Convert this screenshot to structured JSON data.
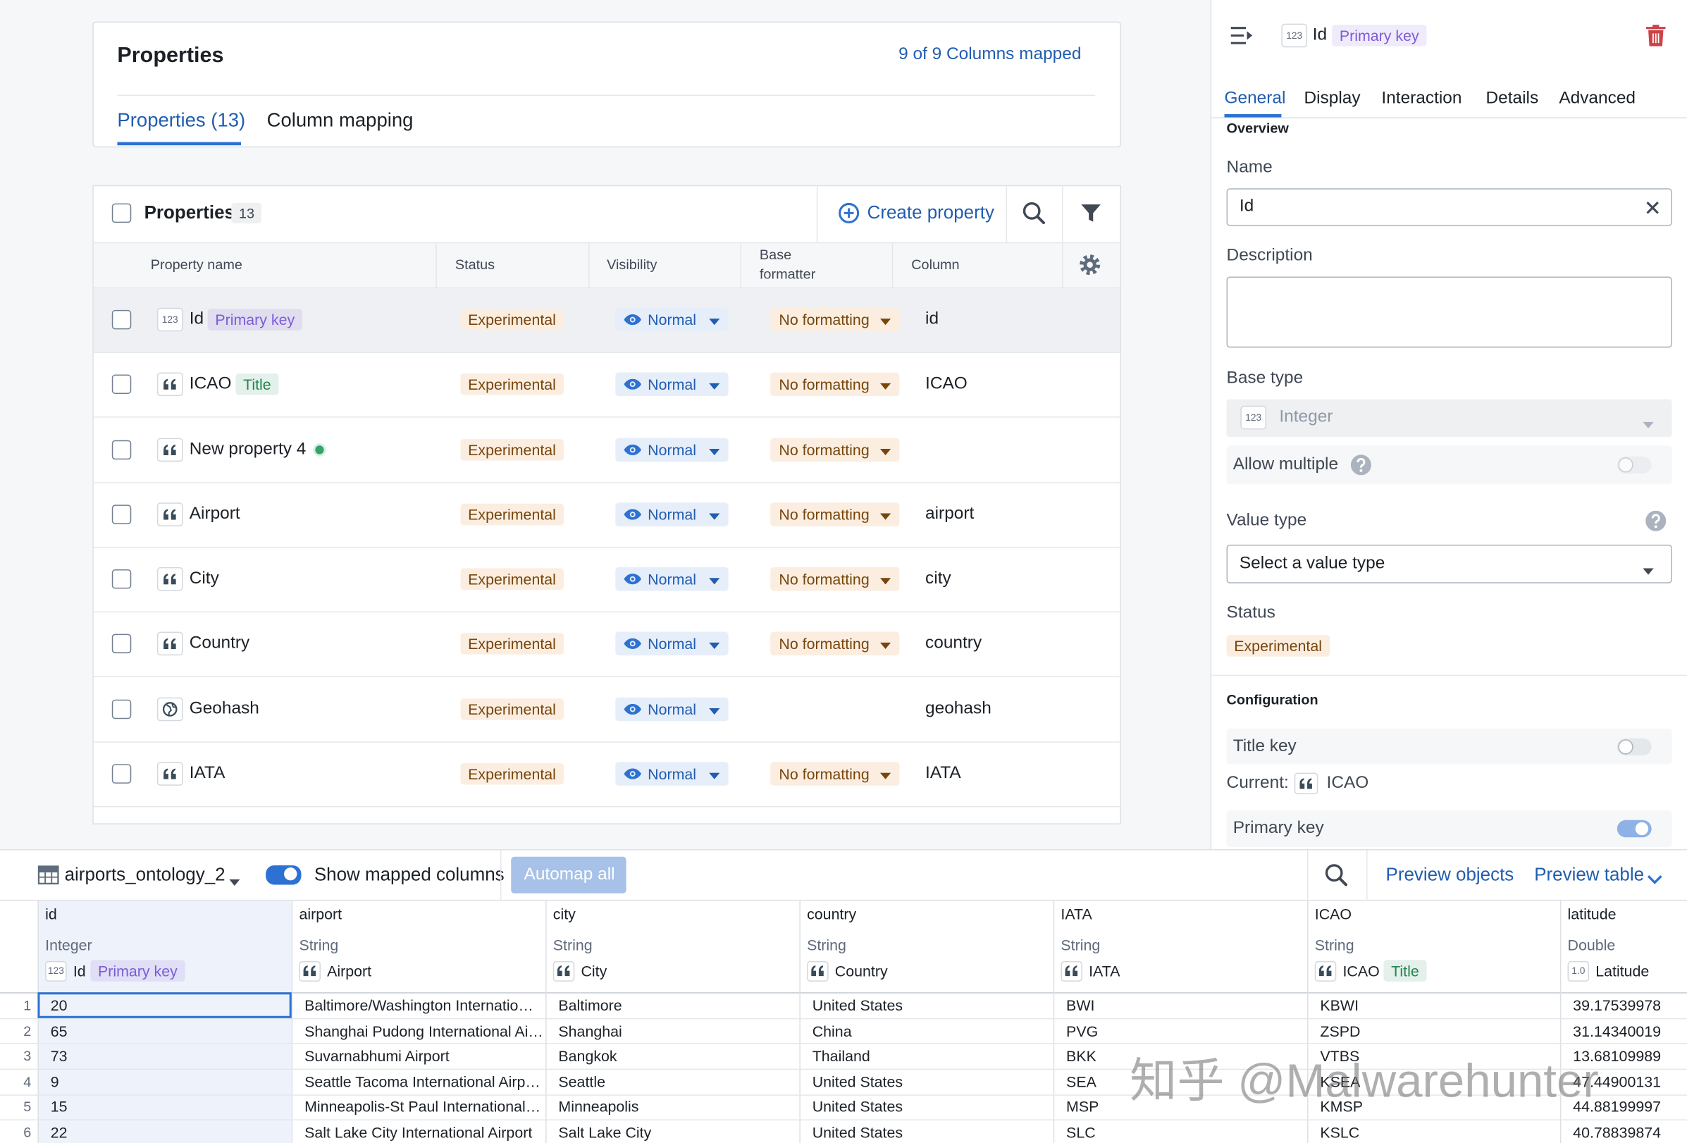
{
  "properties_panel": {
    "title": "Properties",
    "mapped": "9 of 9 Columns mapped",
    "tabs": [
      "Properties (13)",
      "Column mapping"
    ]
  },
  "table": {
    "title": "Properties",
    "count": "13",
    "create": "Create property",
    "headers": [
      "Property name",
      "Status",
      "Visibility",
      "Base formatter",
      "Column"
    ],
    "rows": [
      {
        "icon": "123",
        "name": "Id",
        "badge": "Primary key",
        "badge_color": "#7c5cd6",
        "status": "Experimental",
        "visibility": "Normal",
        "formatter": "No formatting",
        "column": "id"
      },
      {
        "icon": "quote",
        "name": "ICAO",
        "badge": "Title",
        "badge_color": "#238551",
        "status": "Experimental",
        "visibility": "Normal",
        "formatter": "No formatting",
        "column": "ICAO"
      },
      {
        "icon": "quote",
        "name": "New property 4",
        "dot_color": "#32a467",
        "status": "Experimental",
        "visibility": "Normal",
        "formatter": "No formatting",
        "column": null
      },
      {
        "icon": "quote",
        "name": "Airport",
        "status": "Experimental",
        "visibility": "Normal",
        "formatter": "No formatting",
        "column": "airport"
      },
      {
        "icon": "quote",
        "name": "City",
        "status": "Experimental",
        "visibility": "Normal",
        "formatter": "No formatting",
        "column": "city"
      },
      {
        "icon": "quote",
        "name": "Country",
        "status": "Experimental",
        "visibility": "Normal",
        "formatter": "No formatting",
        "column": "country"
      },
      {
        "icon": "globe",
        "name": "Geohash",
        "status": "Experimental",
        "visibility": "Normal",
        "formatter": null,
        "column": "geohash"
      },
      {
        "icon": "quote",
        "name": "IATA",
        "status": "Experimental",
        "visibility": "Normal",
        "formatter": "No formatting",
        "column": "IATA"
      }
    ]
  },
  "side": {
    "header_icon": "123",
    "header_name": "Id",
    "header_badge": "Primary key",
    "tabs": [
      "General",
      "Display",
      "Interaction",
      "Details",
      "Advanced"
    ],
    "overview": "Overview",
    "name_label": "Name",
    "name_value": "Id",
    "description_label": "Description",
    "base_type_label": "Base type",
    "base_type_icon": "123",
    "base_type": "Integer",
    "allow_multiple": "Allow multiple",
    "value_type_label": "Value type",
    "value_type_placeholder": "Select a value type",
    "status_label": "Status",
    "status": "Experimental",
    "configuration": "Configuration",
    "title_key": "Title key",
    "current_label": "Current:",
    "current_value": "ICAO",
    "primary_key": "Primary key"
  },
  "bottom": {
    "dataset": "airports_ontology_2",
    "show_mapped": "Show mapped columns",
    "automap": "Automap all",
    "preview_objects": "Preview objects",
    "preview_table": "Preview table",
    "columns": [
      {
        "name": "id",
        "type": "Integer",
        "icon": "123",
        "property": "Id",
        "badge": "Primary key",
        "badge_color": "#7c5cd6"
      },
      {
        "name": "airport",
        "type": "String",
        "icon": "quote",
        "property": "Airport"
      },
      {
        "name": "city",
        "type": "String",
        "icon": "quote",
        "property": "City"
      },
      {
        "name": "country",
        "type": "String",
        "icon": "quote",
        "property": "Country"
      },
      {
        "name": "IATA",
        "type": "String",
        "icon": "quote",
        "property": "IATA"
      },
      {
        "name": "ICAO",
        "type": "String",
        "icon": "quote",
        "property": "ICAO",
        "badge": "Title",
        "badge_color": "#238551"
      },
      {
        "name": "latitude",
        "type": "Double",
        "icon": "1.0",
        "property": "Latitude"
      }
    ],
    "row_numbers": [
      1,
      2,
      3,
      4,
      5,
      6
    ],
    "rows": [
      [
        20,
        "Baltimore/Washington Internatio…",
        "Baltimore",
        "United States",
        "BWI",
        "KBWI",
        39.17539978
      ],
      [
        65,
        "Shanghai Pudong International Ai…",
        "Shanghai",
        "China",
        "PVG",
        "ZSPD",
        31.14340019
      ],
      [
        73,
        "Suvarnabhumi Airport",
        "Bangkok",
        "Thailand",
        "BKK",
        "VTBS",
        13.68109989
      ],
      [
        9,
        "Seattle Tacoma International Airp…",
        "Seattle",
        "United States",
        "SEA",
        "KSEA",
        47.44900131
      ],
      [
        15,
        "Minneapolis-St Paul International…",
        "Minneapolis",
        "United States",
        "MSP",
        "KMSP",
        44.88199997
      ],
      [
        22,
        "Salt Lake City International Airport",
        "Salt Lake City",
        "United States",
        "SLC",
        "KSLC",
        40.78839874
      ]
    ]
  },
  "watermark": "知乎 @Malwarehunter"
}
